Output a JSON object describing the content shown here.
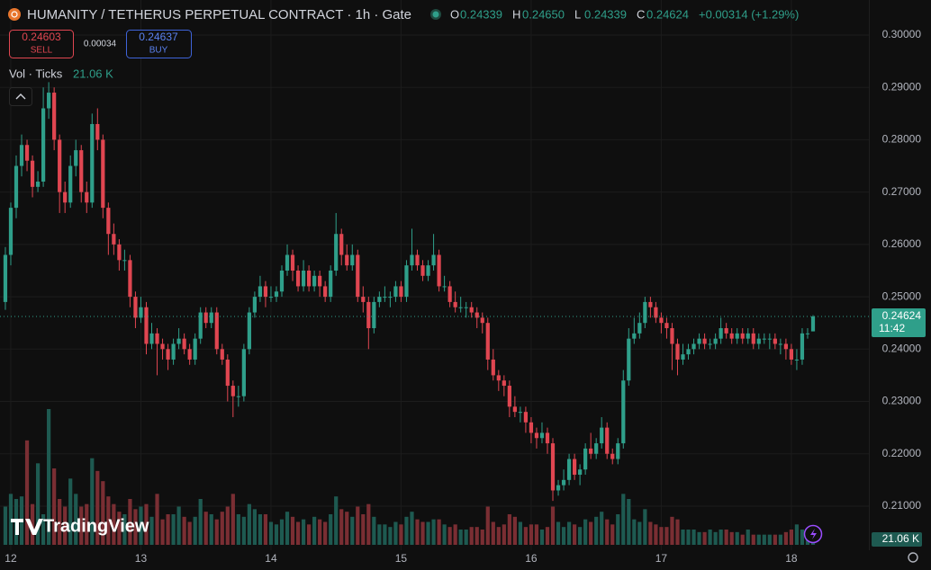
{
  "chart_data": {
    "type": "candlestick",
    "title": "HUMANITY / TETHERUS PERPETUAL CONTRACT · 1h · Gate",
    "legend_labels": [
      "O",
      "H",
      "L",
      "C"
    ],
    "legend_values": [
      0.24339,
      {
        "value": 0.2465,
        "label": "0.24650"
      },
      0.24339,
      0.24624
    ],
    "change_label": "+0.00314 (+1.29%)",
    "sell_price": 0.24603,
    "sell_label": "SELL",
    "spread": 0.00034,
    "buy_price": 0.24637,
    "buy_label": "BUY",
    "volume_title": "Vol · Ticks",
    "volume_last": {
      "value": 21.06,
      "label": "21.06 K"
    },
    "last_price": 0.24624,
    "countdown": "11:42",
    "watermark": "TradingView",
    "up_color": "#2f9f8a",
    "down_color": "#e04651",
    "volume_up_color": "#1e5a51",
    "volume_down_color": "#7a2e33",
    "grid": true,
    "ylim": [
      0.2002,
      0.3067
    ],
    "yticks": [
      {
        "value": 0.21,
        "label": "0.21000"
      },
      {
        "value": 0.22,
        "label": "0.22000"
      },
      {
        "value": 0.23,
        "label": "0.23000"
      },
      {
        "value": 0.24,
        "label": "0.24000"
      },
      {
        "value": 0.25,
        "label": "0.25000"
      },
      {
        "value": 0.26,
        "label": "0.26000"
      },
      {
        "value": 0.27,
        "label": "0.27000"
      },
      {
        "value": 0.28,
        "label": "0.28000"
      },
      {
        "value": 0.29,
        "label": "0.29000"
      },
      {
        "value": 0.3,
        "label": "0.30000"
      }
    ],
    "xlim": [
      -0.99,
      159.3
    ],
    "xticks": [
      {
        "value": 1,
        "label": "12"
      },
      {
        "value": 25,
        "label": "13"
      },
      {
        "value": 49,
        "label": "14"
      },
      {
        "value": 73,
        "label": "15"
      },
      {
        "value": 97,
        "label": "16"
      },
      {
        "value": 121,
        "label": "17"
      },
      {
        "value": 145,
        "label": "18"
      }
    ],
    "volume_lim": [
      0,
      600
    ],
    "ohlc": [
      [
        0.249,
        0.2595,
        0.2475,
        0.258
      ],
      [
        0.258,
        0.268,
        0.256,
        0.267
      ],
      [
        0.267,
        0.277,
        0.265,
        0.275
      ],
      [
        0.275,
        0.281,
        0.273,
        0.279
      ],
      [
        0.279,
        0.28,
        0.274,
        0.276
      ],
      [
        0.276,
        0.277,
        0.269,
        0.271
      ],
      [
        0.271,
        0.274,
        0.27,
        0.272
      ],
      [
        0.272,
        0.29,
        0.271,
        0.286
      ],
      [
        0.286,
        0.291,
        0.284,
        0.289
      ],
      [
        0.289,
        0.29,
        0.278,
        0.28
      ],
      [
        0.28,
        0.281,
        0.266,
        0.27
      ],
      [
        0.27,
        0.272,
        0.266,
        0.268
      ],
      [
        0.268,
        0.277,
        0.267,
        0.275
      ],
      [
        0.275,
        0.28,
        0.273,
        0.278
      ],
      [
        0.278,
        0.279,
        0.268,
        0.27
      ],
      [
        0.27,
        0.272,
        0.266,
        0.268
      ],
      [
        0.268,
        0.285,
        0.267,
        0.283
      ],
      [
        0.283,
        0.286,
        0.278,
        0.28
      ],
      [
        0.28,
        0.281,
        0.265,
        0.267
      ],
      [
        0.267,
        0.268,
        0.258,
        0.262
      ],
      [
        0.262,
        0.264,
        0.258,
        0.26
      ],
      [
        0.26,
        0.261,
        0.255,
        0.257
      ],
      [
        0.257,
        0.259,
        0.255,
        0.257
      ],
      [
        0.257,
        0.258,
        0.248,
        0.25
      ],
      [
        0.25,
        0.251,
        0.244,
        0.246
      ],
      [
        0.246,
        0.25,
        0.245,
        0.248
      ],
      [
        0.248,
        0.249,
        0.239,
        0.241
      ],
      [
        0.241,
        0.245,
        0.24,
        0.243
      ],
      [
        0.243,
        0.244,
        0.235,
        0.241
      ],
      [
        0.241,
        0.242,
        0.238,
        0.24
      ],
      [
        0.24,
        0.241,
        0.236,
        0.238
      ],
      [
        0.238,
        0.242,
        0.237,
        0.241
      ],
      [
        0.241,
        0.244,
        0.24,
        0.242
      ],
      [
        0.242,
        0.243,
        0.239,
        0.24
      ],
      [
        0.24,
        0.241,
        0.237,
        0.238
      ],
      [
        0.238,
        0.243,
        0.237,
        0.242
      ],
      [
        0.242,
        0.248,
        0.241,
        0.247
      ],
      [
        0.247,
        0.248,
        0.244,
        0.245
      ],
      [
        0.245,
        0.248,
        0.244,
        0.247
      ],
      [
        0.247,
        0.248,
        0.239,
        0.24
      ],
      [
        0.24,
        0.241,
        0.237,
        0.238
      ],
      [
        0.238,
        0.239,
        0.23,
        0.233
      ],
      [
        0.233,
        0.234,
        0.227,
        0.231
      ],
      [
        0.231,
        0.233,
        0.229,
        0.231
      ],
      [
        0.231,
        0.241,
        0.23,
        0.24
      ],
      [
        0.24,
        0.248,
        0.239,
        0.247
      ],
      [
        0.247,
        0.251,
        0.246,
        0.25
      ],
      [
        0.25,
        0.254,
        0.249,
        0.252
      ],
      [
        0.252,
        0.253,
        0.248,
        0.25
      ],
      [
        0.25,
        0.252,
        0.249,
        0.25
      ],
      [
        0.25,
        0.252,
        0.249,
        0.251
      ],
      [
        0.251,
        0.256,
        0.25,
        0.255
      ],
      [
        0.255,
        0.26,
        0.254,
        0.258
      ],
      [
        0.258,
        0.259,
        0.253,
        0.255
      ],
      [
        0.255,
        0.256,
        0.251,
        0.252
      ],
      [
        0.252,
        0.257,
        0.251,
        0.255
      ],
      [
        0.255,
        0.256,
        0.251,
        0.252
      ],
      [
        0.252,
        0.255,
        0.251,
        0.254
      ],
      [
        0.254,
        0.255,
        0.25,
        0.252
      ],
      [
        0.252,
        0.253,
        0.249,
        0.25
      ],
      [
        0.25,
        0.256,
        0.249,
        0.255
      ],
      [
        0.255,
        0.266,
        0.254,
        0.262
      ],
      [
        0.262,
        0.263,
        0.256,
        0.258
      ],
      [
        0.258,
        0.26,
        0.255,
        0.256
      ],
      [
        0.256,
        0.26,
        0.255,
        0.258
      ],
      [
        0.258,
        0.259,
        0.249,
        0.25
      ],
      [
        0.25,
        0.252,
        0.247,
        0.249
      ],
      [
        0.249,
        0.25,
        0.24,
        0.244
      ],
      [
        0.244,
        0.25,
        0.243,
        0.249
      ],
      [
        0.249,
        0.251,
        0.248,
        0.25
      ],
      [
        0.25,
        0.252,
        0.249,
        0.25
      ],
      [
        0.25,
        0.251,
        0.248,
        0.25
      ],
      [
        0.25,
        0.253,
        0.249,
        0.252
      ],
      [
        0.252,
        0.253,
        0.249,
        0.25
      ],
      [
        0.25,
        0.257,
        0.249,
        0.256
      ],
      [
        0.256,
        0.263,
        0.255,
        0.258
      ],
      [
        0.258,
        0.259,
        0.255,
        0.256
      ],
      [
        0.256,
        0.257,
        0.253,
        0.254
      ],
      [
        0.254,
        0.257,
        0.253,
        0.256
      ],
      [
        0.256,
        0.262,
        0.255,
        0.258
      ],
      [
        0.258,
        0.259,
        0.251,
        0.252
      ],
      [
        0.252,
        0.254,
        0.251,
        0.252
      ],
      [
        0.252,
        0.253,
        0.248,
        0.249
      ],
      [
        0.249,
        0.251,
        0.247,
        0.248
      ],
      [
        0.248,
        0.25,
        0.247,
        0.248
      ],
      [
        0.248,
        0.249,
        0.246,
        0.248
      ],
      [
        0.248,
        0.249,
        0.246,
        0.247
      ],
      [
        0.247,
        0.248,
        0.244,
        0.246
      ],
      [
        0.246,
        0.247,
        0.243,
        0.245
      ],
      [
        0.245,
        0.246,
        0.236,
        0.238
      ],
      [
        0.238,
        0.24,
        0.234,
        0.235
      ],
      [
        0.235,
        0.236,
        0.232,
        0.234
      ],
      [
        0.234,
        0.235,
        0.231,
        0.233
      ],
      [
        0.233,
        0.234,
        0.227,
        0.229
      ],
      [
        0.229,
        0.231,
        0.227,
        0.228
      ],
      [
        0.228,
        0.229,
        0.226,
        0.228
      ],
      [
        0.228,
        0.229,
        0.224,
        0.226
      ],
      [
        0.226,
        0.227,
        0.222,
        0.224
      ],
      [
        0.224,
        0.225,
        0.221,
        0.223
      ],
      [
        0.223,
        0.226,
        0.222,
        0.224
      ],
      [
        0.224,
        0.225,
        0.22,
        0.222
      ],
      [
        0.222,
        0.223,
        0.211,
        0.213
      ],
      [
        0.213,
        0.215,
        0.212,
        0.214
      ],
      [
        0.214,
        0.217,
        0.213,
        0.215
      ],
      [
        0.215,
        0.22,
        0.214,
        0.219
      ],
      [
        0.219,
        0.22,
        0.215,
        0.216
      ],
      [
        0.216,
        0.218,
        0.214,
        0.217
      ],
      [
        0.217,
        0.222,
        0.216,
        0.221
      ],
      [
        0.221,
        0.224,
        0.219,
        0.22
      ],
      [
        0.22,
        0.223,
        0.219,
        0.222
      ],
      [
        0.222,
        0.227,
        0.221,
        0.225
      ],
      [
        0.225,
        0.226,
        0.219,
        0.22
      ],
      [
        0.22,
        0.221,
        0.218,
        0.219
      ],
      [
        0.219,
        0.223,
        0.218,
        0.222
      ],
      [
        0.222,
        0.236,
        0.221,
        0.234
      ],
      [
        0.234,
        0.244,
        0.233,
        0.242
      ],
      [
        0.242,
        0.246,
        0.241,
        0.243
      ],
      [
        0.243,
        0.247,
        0.242,
        0.245
      ],
      [
        0.245,
        0.25,
        0.244,
        0.249
      ],
      [
        0.249,
        0.25,
        0.246,
        0.248
      ],
      [
        0.248,
        0.249,
        0.245,
        0.246
      ],
      [
        0.246,
        0.247,
        0.243,
        0.245
      ],
      [
        0.245,
        0.246,
        0.242,
        0.244
      ],
      [
        0.244,
        0.245,
        0.236,
        0.241
      ],
      [
        0.241,
        0.242,
        0.235,
        0.238
      ],
      [
        0.238,
        0.241,
        0.237,
        0.239
      ],
      [
        0.239,
        0.241,
        0.238,
        0.24
      ],
      [
        0.24,
        0.242,
        0.239,
        0.241
      ],
      [
        0.241,
        0.243,
        0.24,
        0.242
      ],
      [
        0.242,
        0.243,
        0.24,
        0.241
      ],
      [
        0.241,
        0.242,
        0.24,
        0.241
      ],
      [
        0.241,
        0.243,
        0.24,
        0.242
      ],
      [
        0.242,
        0.246,
        0.241,
        0.244
      ],
      [
        0.244,
        0.245,
        0.242,
        0.243
      ],
      [
        0.243,
        0.244,
        0.241,
        0.242
      ],
      [
        0.242,
        0.244,
        0.241,
        0.243
      ],
      [
        0.243,
        0.244,
        0.241,
        0.242
      ],
      [
        0.242,
        0.244,
        0.241,
        0.243
      ],
      [
        0.243,
        0.244,
        0.24,
        0.241
      ],
      [
        0.241,
        0.243,
        0.24,
        0.242
      ],
      [
        0.242,
        0.243,
        0.241,
        0.242
      ],
      [
        0.242,
        0.243,
        0.24,
        0.242
      ],
      [
        0.242,
        0.243,
        0.24,
        0.241
      ],
      [
        0.241,
        0.242,
        0.239,
        0.241
      ],
      [
        0.241,
        0.242,
        0.238,
        0.24
      ],
      [
        0.24,
        0.241,
        0.237,
        0.238
      ],
      [
        0.238,
        0.24,
        0.236,
        0.238
      ],
      [
        0.238,
        0.244,
        0.237,
        0.243
      ],
      [
        0.243,
        0.244,
        0.242,
        0.243
      ],
      [
        0.24339,
        0.2465,
        0.24339,
        0.24624
      ]
    ],
    "volume": [
      150,
      200,
      180,
      190,
      410,
      160,
      320,
      120,
      533,
      300,
      180,
      150,
      260,
      200,
      150,
      160,
      340,
      290,
      250,
      190,
      160,
      130,
      120,
      180,
      140,
      150,
      160,
      110,
      200,
      100,
      120,
      120,
      150,
      110,
      90,
      110,
      180,
      130,
      120,
      100,
      130,
      150,
      200,
      120,
      110,
      160,
      140,
      120,
      120,
      90,
      80,
      100,
      130,
      110,
      90,
      100,
      80,
      110,
      100,
      90,
      120,
      190,
      140,
      130,
      110,
      150,
      120,
      160,
      110,
      80,
      80,
      70,
      90,
      80,
      110,
      130,
      100,
      90,
      90,
      100,
      100,
      80,
      70,
      80,
      60,
      60,
      70,
      70,
      60,
      150,
      90,
      70,
      80,
      120,
      110,
      90,
      70,
      80,
      80,
      60,
      70,
      150,
      90,
      70,
      90,
      80,
      70,
      100,
      90,
      110,
      130,
      100,
      80,
      120,
      200,
      180,
      100,
      90,
      140,
      90,
      80,
      70,
      70,
      110,
      100,
      60,
      60,
      60,
      50,
      50,
      60,
      50,
      60,
      60,
      50,
      50,
      40,
      60,
      40,
      40,
      40,
      40,
      40,
      40,
      50,
      60,
      80,
      60,
      50,
      21.06
    ]
  }
}
